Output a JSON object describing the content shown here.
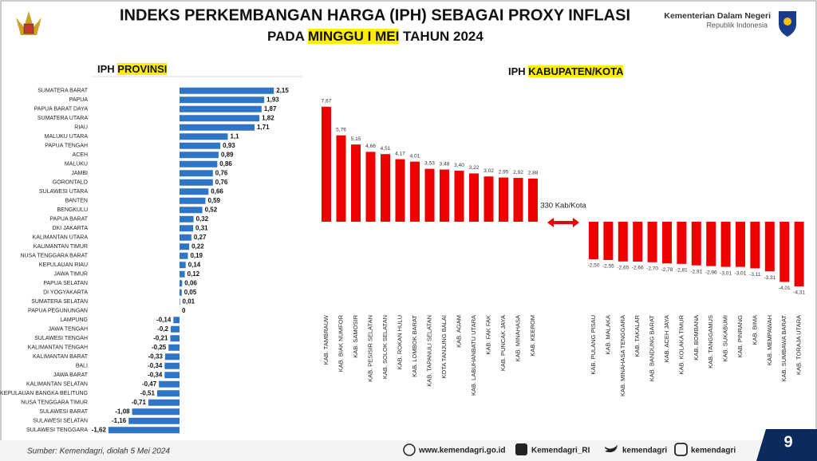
{
  "header": {
    "title": "INDEKS PERKEMBANGAN HARGA (IPH) SEBAGAI PROXY INFLASI",
    "subtitle_start": "PADA",
    "subtitle_highlight": "MINGGU I MEI",
    "subtitle_end": "TAHUN 2024",
    "ministry": "Kementerian Dalam Negeri",
    "country": "Republik Indonesia"
  },
  "chart_data": [
    {
      "type": "hbar",
      "title": "IPH",
      "title_highlight": "PROVINSI",
      "color": "#2e75c6",
      "categories": [
        "SUMATERA BARAT",
        "PAPUA",
        "PAPUA BARAT DAYA",
        "SUMATERA UTARA",
        "RIAU",
        "MALUKU UTARA",
        "PAPUA TENGAH",
        "ACEH",
        "MALUKU",
        "JAMBI",
        "GORONTALO",
        "SULAWESI UTARA",
        "BANTEN",
        "BENGKULU",
        "PAPUA BARAT",
        "DKI JAKARTA",
        "KALIMANTAN UTARA",
        "KALIMANTAN TIMUR",
        "NUSA TENGGARA BARAT",
        "KEPULAUAN RIAU",
        "JAWA TIMUR",
        "PAPUA SELATAN",
        "DI YOGYAKARTA",
        "SUMATERA SELATAN",
        "PAPUA PEGUNUNGAN",
        "LAMPUNG",
        "JAWA TENGAH",
        "SULAWESI TENGAH",
        "KALIMANTAN TENGAH",
        "KALIMANTAN BARAT",
        "BALI",
        "JAWA BARAT",
        "KALIMANTAN SELATAN",
        "KEPULAUAN BANGKA BELITUNG",
        "NUSA TENGGARA TIMUR",
        "SULAWESI BARAT",
        "SULAWESI SELATAN",
        "SULAWESI TENGGARA"
      ],
      "values": [
        2.15,
        1.93,
        1.87,
        1.82,
        1.71,
        1.1,
        0.93,
        0.89,
        0.86,
        0.76,
        0.76,
        0.66,
        0.59,
        0.52,
        0.32,
        0.31,
        0.27,
        0.22,
        0.19,
        0.14,
        0.12,
        0.06,
        0.05,
        0.01,
        0,
        -0.14,
        -0.2,
        -0.21,
        -0.25,
        -0.33,
        -0.34,
        -0.34,
        -0.47,
        -0.51,
        -0.71,
        -1.08,
        -1.16,
        -1.62
      ],
      "value_labels": [
        "2,15",
        "1,93",
        "1,87",
        "1,82",
        "1,71",
        "1,1",
        "0,93",
        "0,89",
        "0,86",
        "0,76",
        "0,76",
        "0,66",
        "0,59",
        "0,52",
        "0,32",
        "0,31",
        "0,27",
        "0,22",
        "0,19",
        "0,14",
        "0,12",
        "0,06",
        "0,05",
        "0,01",
        "0",
        "-0,14",
        "-0,2",
        "-0,21",
        "-0,25",
        "-0,33",
        "-0,34",
        "-0,34",
        "-0,47",
        "-0,51",
        "-0,71",
        "-1,08",
        "-1,16",
        "-1,62"
      ]
    },
    {
      "type": "bar",
      "title": "IPH",
      "title_highlight": "KABUPATEN/KOTA",
      "color": "#ee0000",
      "annotation": "330 Kab/Kota",
      "categories": [
        "KAB. TAMBRAUW",
        "KAB. BIAK NUMFOR",
        "KAB. SAMOSIR",
        "KAB. PESISIR SELATAN",
        "KAB. SOLOK SELATAN",
        "KAB. ROKAN HULU",
        "KAB. LOMBOK BARAT",
        "KAB. TAPANULI SELATAN",
        "KOTA TANJUNG BALAI",
        "KAB. AGAM",
        "KAB. LABUHANBATU UTARA",
        "KAB. FAK FAK",
        "KAB. PUNCAK JAYA",
        "KAB. MINAHASA",
        "KAB. KEEROM",
        "KAB. PULANG PISAU",
        "KAB. MALAKA",
        "KAB. MINAHASA TENGGARA",
        "KAB. TAKALAR",
        "KAB. BANDUNG BARAT",
        "KAB. ACEH JAYA",
        "KAB. KOLAKA TIMUR",
        "KAB. BOMBANA",
        "KAB. TANGGAMUS",
        "KAB. SUKABUMI",
        "KAB. PINRANG",
        "KAB. BIMA",
        "KAB. MEMPAWAH",
        "KAB. SUMBAWA BARAT",
        "KAB. TORAJA UTARA"
      ],
      "values": [
        7.67,
        5.76,
        5.15,
        4.66,
        4.51,
        4.17,
        4.01,
        3.53,
        3.48,
        3.4,
        3.22,
        3.02,
        2.95,
        2.92,
        2.88,
        -2.5,
        -2.55,
        -2.65,
        -2.66,
        -2.7,
        -2.78,
        -2.81,
        -2.91,
        -2.96,
        -3.01,
        -3.01,
        -3.11,
        -3.31,
        -4.01,
        -4.31
      ],
      "value_labels": [
        "7,67",
        "5,76",
        "5,15",
        "4,66",
        "4,51",
        "4,17",
        "4,01",
        "3,53",
        "3,48",
        "3,40",
        "3,22",
        "3,02",
        "2,95",
        "2,92",
        "2,88",
        "-2,50",
        "-2,55",
        "-2,65",
        "-2,66",
        "-2,70",
        "-2,78",
        "-2,81",
        "-2,91",
        "-2,96",
        "-3,01",
        "-3,01",
        "-3,11",
        "-3,31",
        "-4,01",
        "-4,31"
      ]
    }
  ],
  "footer": {
    "source": "Sumber: Kemendagri, diolah 5 Mei 2024",
    "website": "www.kemendagri.go.id",
    "facebook": "Kemendagri_RI",
    "twitter": "kemendagri",
    "instagram": "kemendagri",
    "page": 9
  }
}
